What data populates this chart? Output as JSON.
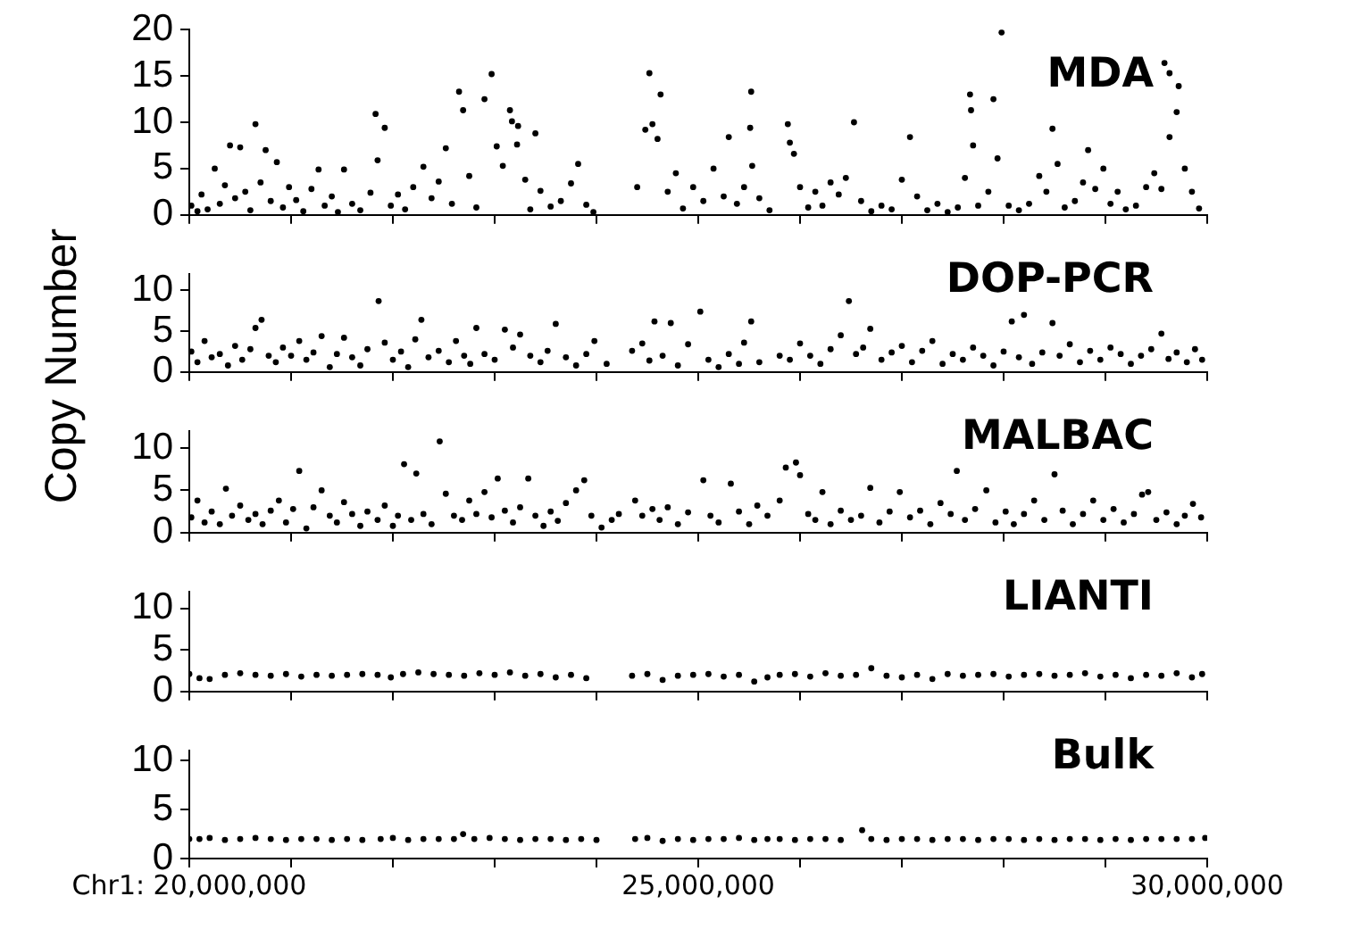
{
  "chart_data": [
    {
      "type": "scatter",
      "title": "MDA",
      "color": "#000000",
      "marker": "circle",
      "tick_labels": "y",
      "xlim": [
        20000000,
        30000000
      ],
      "ylim": [
        0,
        20
      ],
      "yticks": [
        0,
        5,
        10,
        15,
        20
      ],
      "xticks": [
        {
          "value": 20000000,
          "label": null
        },
        {
          "value": 21000000,
          "label": null
        },
        {
          "value": 22000000,
          "label": null
        },
        {
          "value": 23000000,
          "label": null
        },
        {
          "value": 24000000,
          "label": null
        },
        {
          "value": 25000000,
          "label": null
        },
        {
          "value": 26000000,
          "label": null
        },
        {
          "value": 27000000,
          "label": null
        },
        {
          "value": 28000000,
          "label": null
        },
        {
          "value": 29000000,
          "label": null
        },
        {
          "value": 30000000,
          "label": null
        }
      ],
      "x": [
        20020000,
        20080000,
        20120000,
        20180000,
        20250000,
        20300000,
        20350000,
        20400000,
        20450000,
        20500000,
        20550000,
        20600000,
        20650000,
        20700000,
        20750000,
        20800000,
        20860000,
        20920000,
        20980000,
        21050000,
        21120000,
        21200000,
        21270000,
        21330000,
        21400000,
        21460000,
        21520000,
        21600000,
        21680000,
        21780000,
        21830000,
        21850000,
        21920000,
        21980000,
        22050000,
        22120000,
        22200000,
        22300000,
        22380000,
        22450000,
        22520000,
        22580000,
        22650000,
        22690000,
        22750000,
        22820000,
        22900000,
        22970000,
        23020000,
        23080000,
        23150000,
        23170000,
        23220000,
        23230000,
        23300000,
        23350000,
        23400000,
        23450000,
        23550000,
        23650000,
        23750000,
        23820000,
        23900000,
        23970000,
        24400000,
        24480000,
        24520000,
        24550000,
        24600000,
        24630000,
        24700000,
        24780000,
        24850000,
        24950000,
        25050000,
        25150000,
        25250000,
        25300000,
        25380000,
        25450000,
        25510000,
        25520000,
        25530000,
        25600000,
        25700000,
        25880000,
        25900000,
        25940000,
        26000000,
        26080000,
        26150000,
        26220000,
        26300000,
        26380000,
        26450000,
        26530000,
        26600000,
        26700000,
        26800000,
        26900000,
        27000000,
        27080000,
        27150000,
        27250000,
        27350000,
        27450000,
        27550000,
        27620000,
        27670000,
        27680000,
        27700000,
        27750000,
        27850000,
        27900000,
        27940000,
        27980000,
        28050000,
        28150000,
        28250000,
        28350000,
        28420000,
        28480000,
        28530000,
        28600000,
        28700000,
        28780000,
        28830000,
        28900000,
        28980000,
        29050000,
        29120000,
        29200000,
        29300000,
        29400000,
        29480000,
        29550000,
        29580000,
        29630000,
        29630000,
        29700000,
        29720000,
        29780000,
        29850000,
        29920000
      ],
      "values": [
        1.0,
        0.4,
        2.2,
        0.6,
        5.0,
        1.2,
        3.2,
        7.5,
        1.8,
        7.3,
        2.5,
        0.5,
        9.8,
        3.5,
        7.0,
        1.5,
        5.7,
        0.8,
        3.0,
        1.6,
        0.4,
        2.8,
        4.9,
        1.0,
        2.0,
        0.3,
        4.9,
        1.2,
        0.5,
        2.4,
        10.9,
        5.9,
        9.4,
        1.0,
        2.2,
        0.6,
        3.0,
        5.2,
        1.8,
        3.6,
        7.2,
        1.2,
        13.3,
        11.3,
        4.2,
        0.8,
        12.5,
        15.2,
        7.4,
        5.3,
        11.3,
        10.1,
        7.6,
        9.6,
        3.8,
        0.6,
        8.8,
        2.6,
        0.9,
        1.5,
        3.4,
        5.5,
        1.1,
        0.3,
        3.0,
        9.2,
        15.3,
        9.8,
        8.2,
        13.0,
        2.5,
        4.5,
        0.7,
        3.0,
        1.5,
        5.0,
        2.0,
        8.4,
        1.2,
        3.0,
        9.4,
        13.3,
        5.3,
        1.8,
        0.5,
        9.8,
        7.8,
        6.6,
        3.0,
        0.8,
        2.5,
        1.0,
        3.5,
        2.2,
        4.0,
        10.0,
        1.5,
        0.4,
        1.0,
        0.6,
        3.8,
        8.4,
        2.0,
        0.5,
        1.2,
        0.3,
        0.8,
        4.0,
        13.0,
        11.3,
        7.5,
        1.0,
        2.5,
        12.5,
        6.1,
        19.7,
        1.0,
        0.5,
        1.2,
        4.2,
        2.5,
        9.3,
        5.5,
        0.8,
        1.5,
        3.5,
        7.0,
        2.8,
        5.0,
        1.2,
        2.5,
        0.6,
        1.0,
        3.0,
        4.5,
        2.8,
        16.4,
        15.3,
        8.4,
        11.1,
        13.9,
        5.0,
        2.5,
        0.7
      ]
    },
    {
      "type": "scatter",
      "title": "DOP-PCR",
      "ylabel": "Copy Number",
      "color": "#000000",
      "marker": "circle",
      "tick_labels": "y",
      "xlim": [
        20000000,
        30000000
      ],
      "ylim": [
        0,
        12
      ],
      "yticks": [
        0,
        5,
        10
      ],
      "xticks": [
        {
          "value": 20000000,
          "label": null
        },
        {
          "value": 21000000,
          "label": null
        },
        {
          "value": 22000000,
          "label": null
        },
        {
          "value": 23000000,
          "label": null
        },
        {
          "value": 24000000,
          "label": null
        },
        {
          "value": 25000000,
          "label": null
        },
        {
          "value": 26000000,
          "label": null
        },
        {
          "value": 27000000,
          "label": null
        },
        {
          "value": 28000000,
          "label": null
        },
        {
          "value": 29000000,
          "label": null
        },
        {
          "value": 30000000,
          "label": null
        }
      ],
      "x": [
        20020000,
        20080000,
        20150000,
        20220000,
        20300000,
        20380000,
        20450000,
        20520000,
        20600000,
        20650000,
        20710000,
        20780000,
        20850000,
        20920000,
        21000000,
        21080000,
        21150000,
        21220000,
        21300000,
        21380000,
        21450000,
        21520000,
        21600000,
        21680000,
        21750000,
        21860000,
        21920000,
        22000000,
        22080000,
        22150000,
        22220000,
        22280000,
        22350000,
        22450000,
        22550000,
        22620000,
        22700000,
        22760000,
        22820000,
        22900000,
        23000000,
        23100000,
        23180000,
        23250000,
        23350000,
        23450000,
        23520000,
        23600000,
        23700000,
        23800000,
        23900000,
        23980000,
        24100000,
        24350000,
        24450000,
        24520000,
        24570000,
        24650000,
        24730000,
        24800000,
        24900000,
        25020000,
        25100000,
        25200000,
        25300000,
        25400000,
        25450000,
        25520000,
        25600000,
        25800000,
        25900000,
        26000000,
        26100000,
        26200000,
        26300000,
        26400000,
        26480000,
        26550000,
        26620000,
        26690000,
        26800000,
        26900000,
        27000000,
        27100000,
        27200000,
        27300000,
        27400000,
        27500000,
        27600000,
        27700000,
        27800000,
        27900000,
        28000000,
        28080000,
        28150000,
        28200000,
        28280000,
        28380000,
        28480000,
        28550000,
        28650000,
        28750000,
        28850000,
        28950000,
        29050000,
        29150000,
        29250000,
        29350000,
        29450000,
        29550000,
        29620000,
        29700000,
        29800000,
        29880000,
        29950000
      ],
      "values": [
        2.5,
        1.2,
        3.8,
        1.8,
        2.2,
        0.8,
        3.2,
        1.5,
        2.8,
        5.4,
        6.4,
        2.0,
        1.2,
        3.0,
        2.0,
        3.8,
        1.5,
        2.4,
        4.4,
        0.6,
        2.2,
        4.2,
        1.8,
        0.8,
        2.8,
        8.7,
        3.6,
        1.5,
        2.5,
        0.6,
        4.0,
        6.4,
        1.8,
        2.6,
        1.2,
        3.8,
        2.0,
        1.0,
        5.4,
        2.2,
        1.5,
        5.2,
        3.0,
        4.6,
        2.0,
        1.2,
        2.6,
        5.9,
        1.8,
        0.8,
        2.2,
        3.8,
        1.0,
        2.6,
        3.5,
        1.4,
        6.2,
        2.0,
        6.0,
        0.8,
        3.4,
        7.4,
        1.5,
        0.6,
        2.2,
        1.0,
        3.6,
        6.2,
        1.2,
        2.0,
        1.5,
        3.5,
        2.0,
        1.0,
        2.8,
        4.5,
        8.7,
        2.2,
        3.0,
        5.3,
        1.5,
        2.4,
        3.2,
        1.2,
        2.6,
        3.8,
        1.0,
        2.2,
        1.5,
        3.0,
        2.0,
        0.8,
        2.5,
        6.2,
        1.8,
        7.0,
        1.0,
        2.4,
        6.0,
        2.0,
        3.4,
        1.2,
        2.6,
        1.5,
        3.0,
        2.2,
        1.0,
        2.0,
        2.8,
        4.7,
        1.6,
        2.4,
        1.2,
        2.8,
        1.5
      ]
    },
    {
      "type": "scatter",
      "title": "MALBAC",
      "color": "#000000",
      "marker": "circle",
      "tick_labels": "y",
      "xlim": [
        20000000,
        30000000
      ],
      "ylim": [
        0,
        12
      ],
      "yticks": [
        0,
        5,
        10
      ],
      "xticks": [
        {
          "value": 20000000,
          "label": null
        },
        {
          "value": 21000000,
          "label": null
        },
        {
          "value": 22000000,
          "label": null
        },
        {
          "value": 23000000,
          "label": null
        },
        {
          "value": 24000000,
          "label": null
        },
        {
          "value": 25000000,
          "label": null
        },
        {
          "value": 26000000,
          "label": null
        },
        {
          "value": 27000000,
          "label": null
        },
        {
          "value": 28000000,
          "label": null
        },
        {
          "value": 29000000,
          "label": null
        },
        {
          "value": 30000000,
          "label": null
        }
      ],
      "x": [
        20020000,
        20080000,
        20150000,
        20220000,
        20300000,
        20360000,
        20420000,
        20500000,
        20580000,
        20650000,
        20720000,
        20800000,
        20880000,
        20950000,
        21020000,
        21080000,
        21150000,
        21220000,
        21300000,
        21380000,
        21450000,
        21520000,
        21600000,
        21680000,
        21750000,
        21850000,
        21920000,
        22000000,
        22050000,
        22110000,
        22180000,
        22230000,
        22300000,
        22380000,
        22460000,
        22520000,
        22600000,
        22680000,
        22750000,
        22820000,
        22900000,
        22970000,
        23030000,
        23100000,
        23180000,
        23250000,
        23330000,
        23400000,
        23480000,
        23550000,
        23620000,
        23700000,
        23800000,
        23880000,
        23950000,
        24050000,
        24150000,
        24220000,
        24380000,
        24450000,
        24550000,
        24620000,
        24700000,
        24800000,
        24900000,
        25050000,
        25120000,
        25200000,
        25320000,
        25400000,
        25500000,
        25580000,
        25680000,
        25800000,
        25860000,
        25960000,
        26000000,
        26080000,
        26150000,
        26220000,
        26300000,
        26400000,
        26500000,
        26600000,
        26690000,
        26780000,
        26880000,
        26980000,
        27080000,
        27180000,
        27280000,
        27380000,
        27480000,
        27540000,
        27620000,
        27720000,
        27830000,
        27920000,
        28020000,
        28100000,
        28200000,
        28300000,
        28400000,
        28500000,
        28580000,
        28680000,
        28780000,
        28880000,
        28980000,
        29080000,
        29180000,
        29280000,
        29360000,
        29420000,
        29500000,
        29600000,
        29700000,
        29780000,
        29860000,
        29940000
      ],
      "values": [
        1.8,
        3.8,
        1.2,
        2.5,
        1.0,
        5.2,
        2.0,
        3.2,
        1.5,
        2.2,
        1.0,
        2.6,
        3.8,
        1.2,
        2.8,
        7.3,
        0.5,
        3.0,
        5.0,
        2.0,
        1.2,
        3.6,
        2.2,
        0.8,
        2.5,
        1.5,
        3.2,
        0.8,
        2.0,
        8.1,
        1.5,
        7.0,
        2.2,
        1.0,
        10.8,
        4.6,
        2.0,
        1.5,
        3.8,
        2.2,
        4.8,
        1.8,
        6.4,
        2.6,
        1.2,
        3.0,
        6.4,
        2.0,
        0.8,
        2.5,
        1.4,
        3.5,
        5.0,
        6.2,
        2.0,
        0.6,
        1.5,
        2.2,
        3.8,
        2.0,
        2.8,
        1.5,
        3.0,
        1.0,
        2.4,
        6.2,
        2.0,
        1.2,
        5.8,
        2.5,
        1.0,
        3.2,
        2.0,
        3.8,
        7.7,
        8.3,
        6.8,
        2.2,
        1.5,
        4.8,
        1.0,
        2.6,
        1.5,
        2.0,
        5.3,
        1.2,
        2.5,
        4.8,
        1.8,
        2.6,
        1.0,
        3.5,
        2.2,
        7.3,
        1.5,
        2.8,
        5.0,
        1.2,
        2.5,
        1.0,
        2.2,
        3.8,
        1.5,
        6.9,
        2.6,
        1.0,
        2.2,
        3.8,
        1.5,
        2.8,
        1.2,
        2.2,
        4.5,
        4.8,
        1.5,
        2.4,
        1.0,
        2.0,
        3.4,
        1.8
      ]
    },
    {
      "type": "scatter",
      "title": "LIANTI",
      "color": "#000000",
      "marker": "circle",
      "tick_labels": "y",
      "xlim": [
        20000000,
        30000000
      ],
      "ylim": [
        0,
        12
      ],
      "yticks": [
        0,
        5,
        10
      ],
      "xticks": [
        {
          "value": 20000000,
          "label": null
        },
        {
          "value": 21000000,
          "label": null
        },
        {
          "value": 22000000,
          "label": null
        },
        {
          "value": 23000000,
          "label": null
        },
        {
          "value": 24000000,
          "label": null
        },
        {
          "value": 25000000,
          "label": null
        },
        {
          "value": 26000000,
          "label": null
        },
        {
          "value": 27000000,
          "label": null
        },
        {
          "value": 28000000,
          "label": null
        },
        {
          "value": 29000000,
          "label": null
        },
        {
          "value": 30000000,
          "label": null
        }
      ],
      "x": [
        20000000,
        20100000,
        20200000,
        20350000,
        20500000,
        20650000,
        20800000,
        20950000,
        21100000,
        21250000,
        21400000,
        21550000,
        21700000,
        21850000,
        21980000,
        22100000,
        22250000,
        22400000,
        22550000,
        22700000,
        22850000,
        23000000,
        23150000,
        23300000,
        23450000,
        23600000,
        23750000,
        23900000,
        24350000,
        24500000,
        24650000,
        24800000,
        24950000,
        25100000,
        25250000,
        25400000,
        25550000,
        25680000,
        25800000,
        25950000,
        26100000,
        26250000,
        26400000,
        26550000,
        26700000,
        26850000,
        27000000,
        27150000,
        27300000,
        27450000,
        27600000,
        27750000,
        27900000,
        28050000,
        28200000,
        28350000,
        28500000,
        28650000,
        28800000,
        28950000,
        29100000,
        29250000,
        29400000,
        29550000,
        29700000,
        29850000,
        29950000
      ],
      "values": [
        2.1,
        1.6,
        1.5,
        2.0,
        2.2,
        2.0,
        1.9,
        2.1,
        1.8,
        2.0,
        1.9,
        2.0,
        2.1,
        2.0,
        1.7,
        2.1,
        2.3,
        2.1,
        2.0,
        1.9,
        2.2,
        2.0,
        2.3,
        1.9,
        2.1,
        1.7,
        2.0,
        1.6,
        1.9,
        2.1,
        1.4,
        1.9,
        2.0,
        2.1,
        1.8,
        2.0,
        1.2,
        1.7,
        2.0,
        2.1,
        1.8,
        2.2,
        1.9,
        2.0,
        2.8,
        1.9,
        1.7,
        2.0,
        1.5,
        2.1,
        1.9,
        2.0,
        2.1,
        1.8,
        2.0,
        2.1,
        1.9,
        2.0,
        2.2,
        1.8,
        2.0,
        1.6,
        2.0,
        1.9,
        2.2,
        1.7,
        2.1
      ]
    },
    {
      "type": "scatter",
      "title": "Bulk",
      "color": "#000000",
      "marker": "circle",
      "xlim": [
        20000000,
        30000000
      ],
      "ylim": [
        0,
        11
      ],
      "yticks": [
        0,
        5,
        10
      ],
      "xticks": [
        {
          "value": 20000000,
          "label": "Chr1: 20,000,000"
        },
        {
          "value": 21000000,
          "label": null
        },
        {
          "value": 22000000,
          "label": null
        },
        {
          "value": 23000000,
          "label": null
        },
        {
          "value": 24000000,
          "label": null
        },
        {
          "value": 25000000,
          "label": "25,000,000"
        },
        {
          "value": 26000000,
          "label": null
        },
        {
          "value": 27000000,
          "label": null
        },
        {
          "value": 28000000,
          "label": null
        },
        {
          "value": 29000000,
          "label": null
        },
        {
          "value": 30000000,
          "label": "30,000,000"
        }
      ],
      "x": [
        20000000,
        20100000,
        20200000,
        20350000,
        20500000,
        20650000,
        20800000,
        20950000,
        21100000,
        21250000,
        21400000,
        21550000,
        21700000,
        21880000,
        22000000,
        22150000,
        22300000,
        22450000,
        22600000,
        22690000,
        22800000,
        22950000,
        23100000,
        23250000,
        23400000,
        23550000,
        23700000,
        23850000,
        24000000,
        24380000,
        24500000,
        24650000,
        24800000,
        24950000,
        25100000,
        25250000,
        25400000,
        25550000,
        25680000,
        25800000,
        25950000,
        26100000,
        26250000,
        26400000,
        26610000,
        26700000,
        26850000,
        27000000,
        27150000,
        27300000,
        27450000,
        27600000,
        27750000,
        27900000,
        28050000,
        28200000,
        28350000,
        28500000,
        28650000,
        28800000,
        28950000,
        29100000,
        29250000,
        29400000,
        29550000,
        29700000,
        29850000,
        29980000
      ],
      "values": [
        2.0,
        2.0,
        2.1,
        1.9,
        2.0,
        2.1,
        2.0,
        1.9,
        2.0,
        2.0,
        1.9,
        2.0,
        1.9,
        2.0,
        2.1,
        1.9,
        2.0,
        2.0,
        2.0,
        2.5,
        2.0,
        2.1,
        2.0,
        1.9,
        2.0,
        2.0,
        1.9,
        2.0,
        1.9,
        2.0,
        2.1,
        1.8,
        2.0,
        1.9,
        2.0,
        2.0,
        2.1,
        1.9,
        2.0,
        2.0,
        1.9,
        2.0,
        2.0,
        1.9,
        2.9,
        2.0,
        1.9,
        2.0,
        2.0,
        1.9,
        2.0,
        2.0,
        1.9,
        2.0,
        2.0,
        1.9,
        2.0,
        1.9,
        2.0,
        2.0,
        1.9,
        2.0,
        1.9,
        2.0,
        2.0,
        2.0,
        2.0,
        2.1
      ]
    }
  ]
}
